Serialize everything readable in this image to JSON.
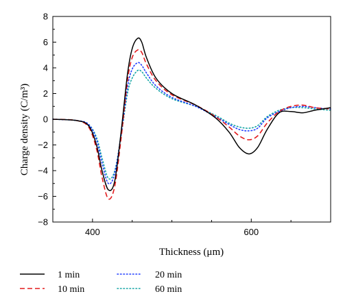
{
  "chart_data": {
    "type": "line",
    "xlabel": "Thickness (μm)",
    "ylabel": "Charge density (C/m³)",
    "xlim": [
      350,
      700
    ],
    "ylim": [
      -8,
      8
    ],
    "x_ticks": [
      400,
      600
    ],
    "x_tick_labels": [
      "400",
      "600"
    ],
    "y_ticks": [
      -8,
      -6,
      -4,
      -2,
      0,
      2,
      4,
      6,
      8
    ],
    "y_tick_labels": [
      "−8",
      "−6",
      "−4",
      "−2",
      "0",
      "2",
      "4",
      "6",
      "8"
    ],
    "grid": false,
    "legend_position": "bottom-left",
    "series": [
      {
        "name": "1 min",
        "color": "#000000",
        "dash": "solid",
        "x": [
          350,
          380,
          395,
          405,
          412,
          420,
          428,
          436,
          444,
          450,
          457,
          462,
          468,
          480,
          500,
          530,
          555,
          572,
          585,
          597,
          608,
          620,
          635,
          650,
          665,
          680,
          700
        ],
        "y": [
          0,
          -0.1,
          -0.5,
          -2.0,
          -4.0,
          -5.5,
          -4.8,
          -1.0,
          3.5,
          5.5,
          6.3,
          6.0,
          4.8,
          3.2,
          2.0,
          1.1,
          0.1,
          -1.0,
          -2.2,
          -2.7,
          -2.2,
          -0.8,
          0.5,
          0.6,
          0.5,
          0.7,
          0.9
        ]
      },
      {
        "name": "10 min",
        "color": "#e31a1c",
        "dash": "dashed",
        "x": [
          350,
          380,
          395,
          405,
          412,
          420,
          428,
          436,
          444,
          450,
          457,
          462,
          468,
          480,
          500,
          530,
          555,
          572,
          585,
          597,
          608,
          620,
          635,
          650,
          665,
          680,
          700
        ],
        "y": [
          0,
          -0.1,
          -0.6,
          -2.3,
          -4.5,
          -6.2,
          -5.2,
          -1.5,
          3.0,
          4.8,
          5.4,
          5.2,
          4.3,
          3.0,
          1.9,
          1.1,
          0.2,
          -0.6,
          -1.3,
          -1.6,
          -1.3,
          -0.3,
          0.6,
          1.0,
          1.1,
          0.9,
          0.8
        ]
      },
      {
        "name": "20 min",
        "color": "#1f3cff",
        "dash": "dotted",
        "x": [
          350,
          380,
          395,
          405,
          412,
          420,
          428,
          436,
          444,
          450,
          457,
          462,
          468,
          480,
          500,
          530,
          555,
          572,
          585,
          597,
          608,
          620,
          635,
          650,
          665,
          680,
          700
        ],
        "y": [
          0,
          -0.1,
          -0.4,
          -1.6,
          -3.4,
          -5.0,
          -4.2,
          -1.2,
          2.5,
          3.9,
          4.4,
          4.2,
          3.6,
          2.6,
          1.7,
          1.0,
          0.2,
          -0.4,
          -0.8,
          -0.9,
          -0.7,
          0.1,
          0.6,
          0.9,
          1.0,
          0.9,
          0.8
        ]
      },
      {
        "name": "60 min",
        "color": "#17a6a6",
        "dash": "dotted",
        "x": [
          350,
          380,
          395,
          405,
          412,
          420,
          428,
          436,
          444,
          450,
          457,
          462,
          468,
          480,
          500,
          530,
          555,
          572,
          585,
          597,
          608,
          620,
          635,
          650,
          665,
          680,
          700
        ],
        "y": [
          0,
          -0.1,
          -0.4,
          -1.4,
          -3.0,
          -4.6,
          -4.0,
          -1.3,
          2.0,
          3.2,
          3.8,
          3.7,
          3.2,
          2.4,
          1.6,
          1.0,
          0.3,
          -0.3,
          -0.6,
          -0.7,
          -0.5,
          0.2,
          0.7,
          0.9,
          0.9,
          0.8,
          0.7
        ]
      }
    ]
  }
}
